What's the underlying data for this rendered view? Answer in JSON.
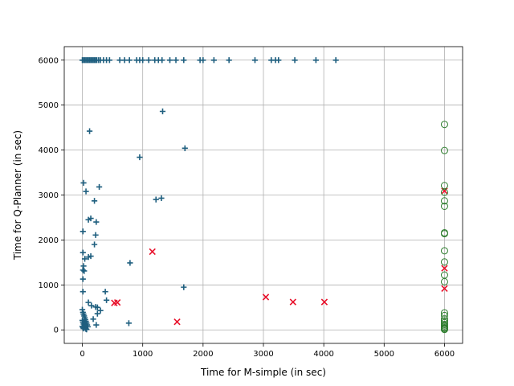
{
  "chart_data": {
    "type": "scatter",
    "title": "",
    "xlabel": "Time for M-simple (in sec)",
    "ylabel": "Time for Q-Planner (in sec)",
    "xlim": [
      -300,
      6300
    ],
    "ylim": [
      -300,
      6300
    ],
    "xticks": [
      0,
      1000,
      2000,
      3000,
      4000,
      5000,
      6000
    ],
    "yticks": [
      0,
      1000,
      2000,
      3000,
      4000,
      5000,
      6000
    ],
    "grid": true,
    "legend": "none",
    "series": [
      {
        "marker": "plus",
        "color": "#1f5f7f",
        "points": [
          [
            0,
            6000
          ],
          [
            20,
            6000
          ],
          [
            40,
            6000
          ],
          [
            60,
            6000
          ],
          [
            80,
            6000
          ],
          [
            100,
            6000
          ],
          [
            120,
            6000
          ],
          [
            140,
            6000
          ],
          [
            160,
            6000
          ],
          [
            180,
            6000
          ],
          [
            200,
            6000
          ],
          [
            220,
            6000
          ],
          [
            240,
            6000
          ],
          [
            270,
            6000
          ],
          [
            300,
            6000
          ],
          [
            350,
            6000
          ],
          [
            400,
            6000
          ],
          [
            450,
            6000
          ],
          [
            620,
            6000
          ],
          [
            700,
            6000
          ],
          [
            780,
            6000
          ],
          [
            900,
            6000
          ],
          [
            950,
            6000
          ],
          [
            1000,
            6000
          ],
          [
            1100,
            6000
          ],
          [
            1200,
            6000
          ],
          [
            1260,
            6000
          ],
          [
            1320,
            6000
          ],
          [
            1450,
            6000
          ],
          [
            1550,
            6000
          ],
          [
            1680,
            6000
          ],
          [
            1950,
            6000
          ],
          [
            2000,
            6000
          ],
          [
            2180,
            6000
          ],
          [
            2430,
            6000
          ],
          [
            2860,
            6000
          ],
          [
            3130,
            6000
          ],
          [
            3200,
            6000
          ],
          [
            3250,
            6000
          ],
          [
            3520,
            6000
          ],
          [
            3870,
            6000
          ],
          [
            4200,
            6000
          ],
          [
            120,
            4420
          ],
          [
            1330,
            4860
          ],
          [
            1700,
            4040
          ],
          [
            950,
            3840
          ],
          [
            20,
            3270
          ],
          [
            60,
            3080
          ],
          [
            280,
            3180
          ],
          [
            200,
            2870
          ],
          [
            1220,
            2900
          ],
          [
            1310,
            2930
          ],
          [
            100,
            2450
          ],
          [
            140,
            2480
          ],
          [
            230,
            2400
          ],
          [
            10,
            2190
          ],
          [
            220,
            2110
          ],
          [
            200,
            1900
          ],
          [
            10,
            1720
          ],
          [
            40,
            1580
          ],
          [
            100,
            1620
          ],
          [
            140,
            1640
          ],
          [
            790,
            1490
          ],
          [
            20,
            1420
          ],
          [
            10,
            1330
          ],
          [
            30,
            1310
          ],
          [
            10,
            1130
          ],
          [
            10,
            850
          ],
          [
            380,
            850
          ],
          [
            400,
            660
          ],
          [
            1680,
            950
          ],
          [
            250,
            500
          ],
          [
            150,
            540
          ],
          [
            220,
            510
          ],
          [
            300,
            430
          ],
          [
            100,
            610
          ],
          [
            250,
            360
          ],
          [
            180,
            240
          ],
          [
            230,
            110
          ],
          [
            770,
            150
          ],
          [
            0,
            450
          ],
          [
            10,
            390
          ],
          [
            20,
            350
          ],
          [
            30,
            310
          ],
          [
            40,
            270
          ],
          [
            50,
            230
          ],
          [
            60,
            190
          ],
          [
            70,
            150
          ],
          [
            80,
            110
          ],
          [
            90,
            70
          ],
          [
            0,
            210
          ],
          [
            10,
            170
          ],
          [
            20,
            130
          ],
          [
            30,
            90
          ],
          [
            40,
            60
          ],
          [
            50,
            40
          ],
          [
            60,
            20
          ],
          [
            70,
            10
          ],
          [
            0,
            80
          ],
          [
            10,
            50
          ],
          [
            20,
            30
          ]
        ]
      },
      {
        "marker": "x",
        "color": "#e8102a",
        "points": [
          [
            580,
            610
          ],
          [
            530,
            600
          ],
          [
            1160,
            1740
          ],
          [
            1570,
            180
          ],
          [
            3040,
            730
          ],
          [
            3490,
            620
          ],
          [
            4010,
            620
          ],
          [
            6000,
            3090
          ],
          [
            6000,
            1370
          ],
          [
            6000,
            920
          ]
        ]
      },
      {
        "marker": "circle",
        "color": "#2e7d2e",
        "points": [
          [
            6000,
            4570
          ],
          [
            6000,
            3990
          ],
          [
            6000,
            3210
          ],
          [
            6000,
            3060
          ],
          [
            6000,
            2870
          ],
          [
            6000,
            2750
          ],
          [
            6000,
            2160
          ],
          [
            6000,
            2140
          ],
          [
            6000,
            1760
          ],
          [
            6000,
            1510
          ],
          [
            6000,
            1220
          ],
          [
            6000,
            1070
          ],
          [
            6000,
            380
          ],
          [
            6000,
            320
          ],
          [
            6000,
            240
          ],
          [
            6000,
            200
          ],
          [
            6000,
            160
          ],
          [
            6000,
            120
          ],
          [
            6000,
            90
          ],
          [
            6000,
            60
          ],
          [
            6000,
            40
          ],
          [
            6000,
            20
          ],
          [
            6000,
            10
          ]
        ]
      }
    ]
  }
}
